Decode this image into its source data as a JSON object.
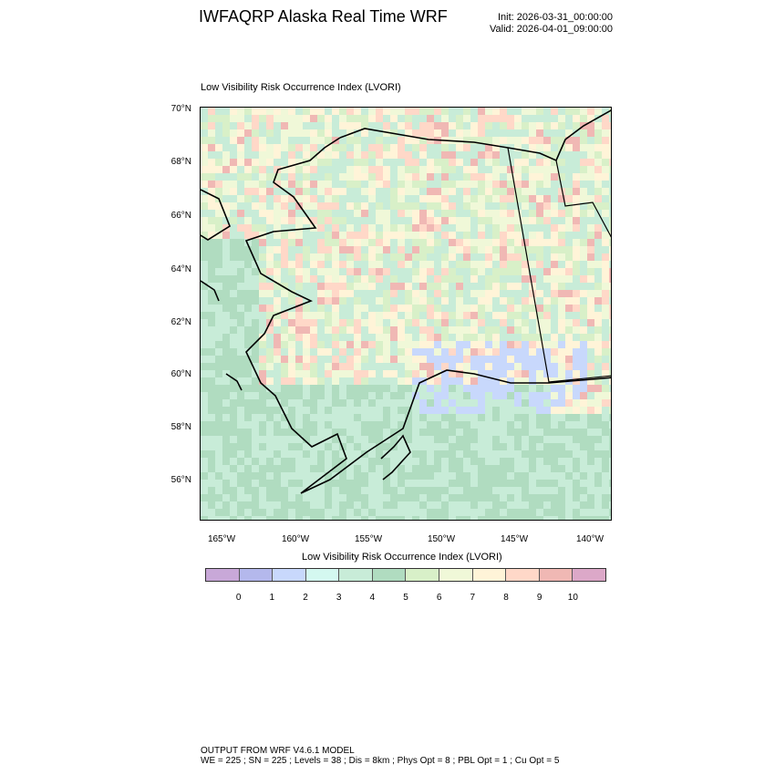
{
  "header": {
    "title": "IWFAQRP Alaska Real Time WRF",
    "init": "Init: 2026-03-31_00:00:00",
    "valid": "Valid: 2026-04-01_09:00:00"
  },
  "plot": {
    "subtitle": "Low Visibility Risk Occurrence Index   (LVORI)",
    "lat_labels": [
      "70°N",
      "68°N",
      "66°N",
      "64°N",
      "62°N",
      "60°N",
      "58°N",
      "56°N"
    ],
    "lon_labels": [
      "165°W",
      "160°W",
      "155°W",
      "150°W",
      "145°W",
      "140°W"
    ]
  },
  "colorbar": {
    "title": "Low Visibility Risk Occurrence Index  (LVORI)",
    "colors": [
      "#c8a8d8",
      "#b4b8ec",
      "#c8d8fc",
      "#d4f8f0",
      "#c8ecd8",
      "#b0dcc0",
      "#d8f0c8",
      "#f0f8d8",
      "#fff4d8",
      "#ffd8c8",
      "#f0b8b4",
      "#dca8c8"
    ],
    "labels": [
      "0",
      "1",
      "2",
      "3",
      "4",
      "5",
      "6",
      "7",
      "8",
      "9",
      "10"
    ]
  },
  "footer": {
    "line1": "OUTPUT FROM WRF V4.6.1 MODEL",
    "line2": "WE = 225 ; SN = 225 ; Levels = 38 ; Dis = 8km ; Phys Opt = 8 ; PBL Opt = 1 ; Cu Opt = 5"
  }
}
